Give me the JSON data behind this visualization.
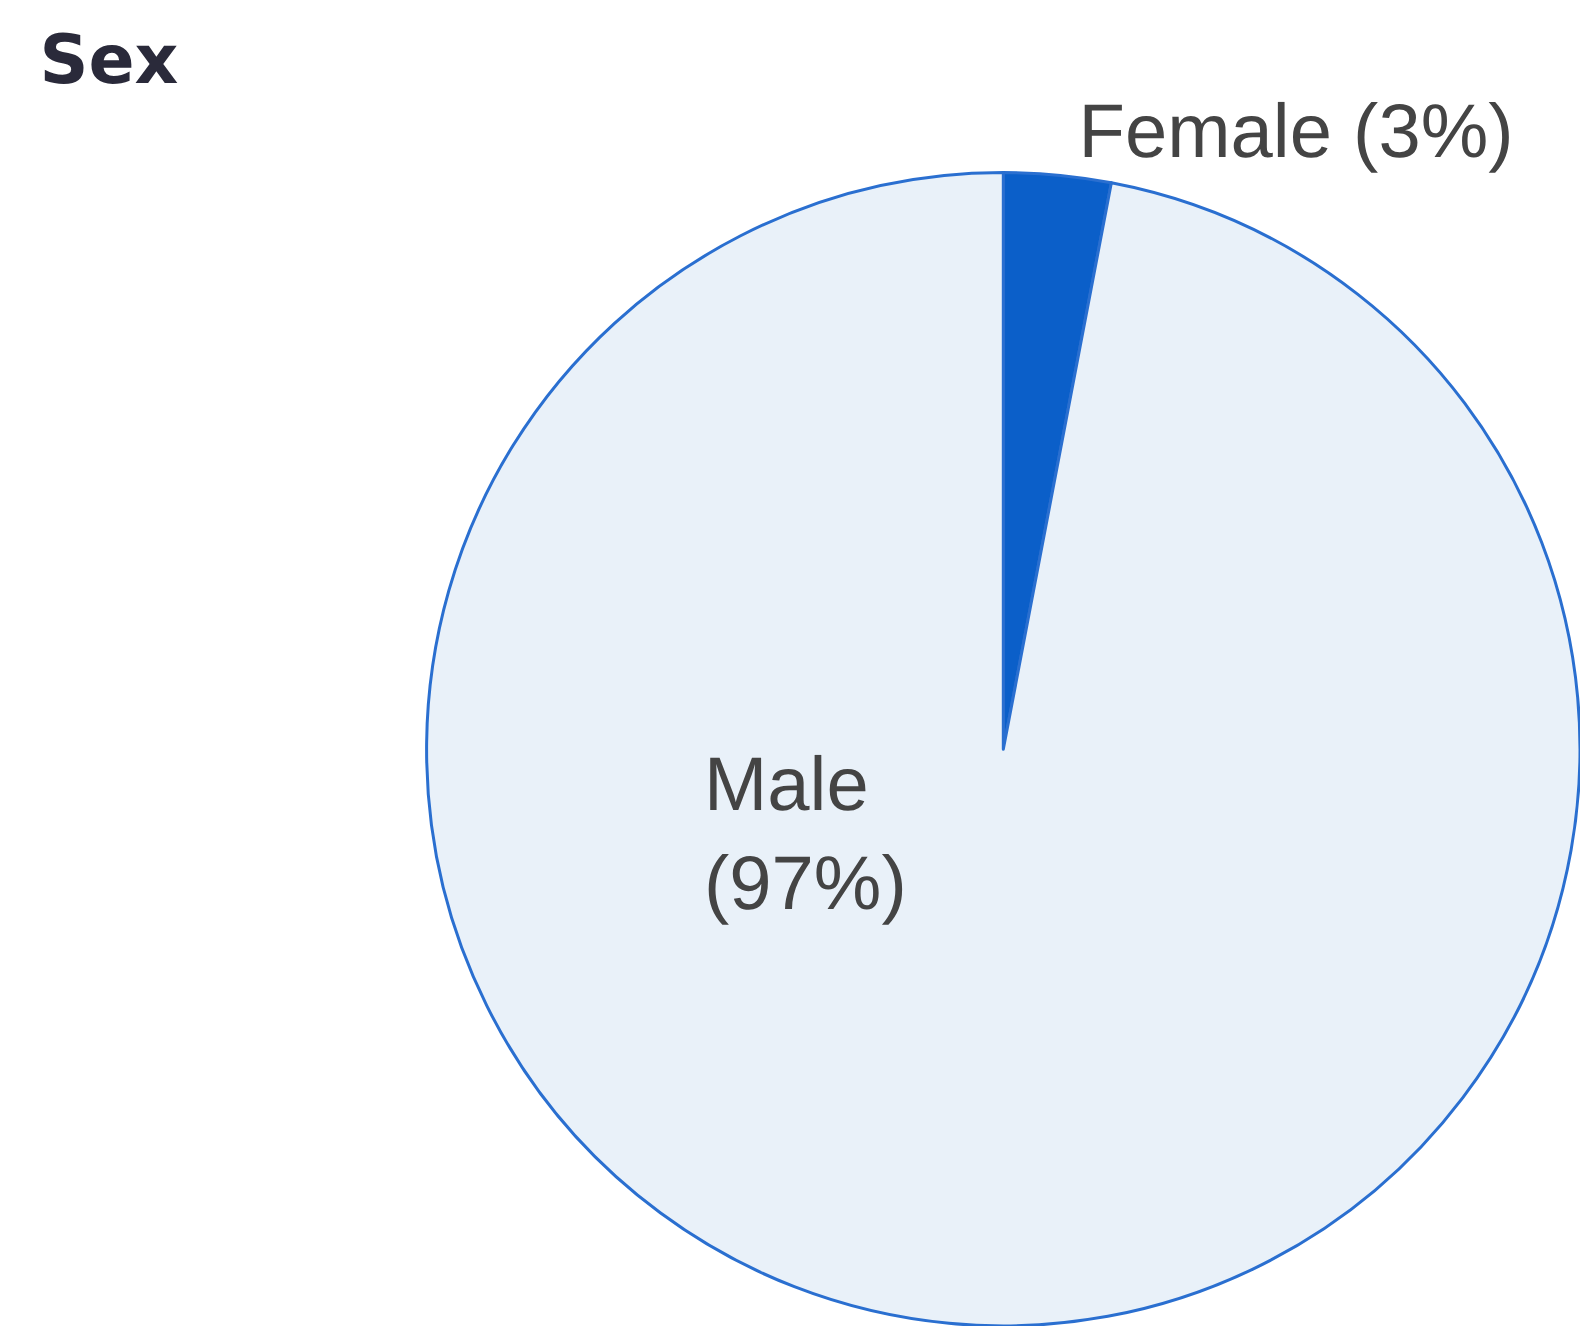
{
  "chart_data": {
    "type": "pie",
    "title": "Sex",
    "categories": [
      "Female",
      "Male"
    ],
    "values": [
      3,
      97
    ],
    "colors": [
      "#0b5fc9",
      "#e9f1f9"
    ],
    "value_labels": [
      "(3%)",
      "(97%)"
    ]
  }
}
